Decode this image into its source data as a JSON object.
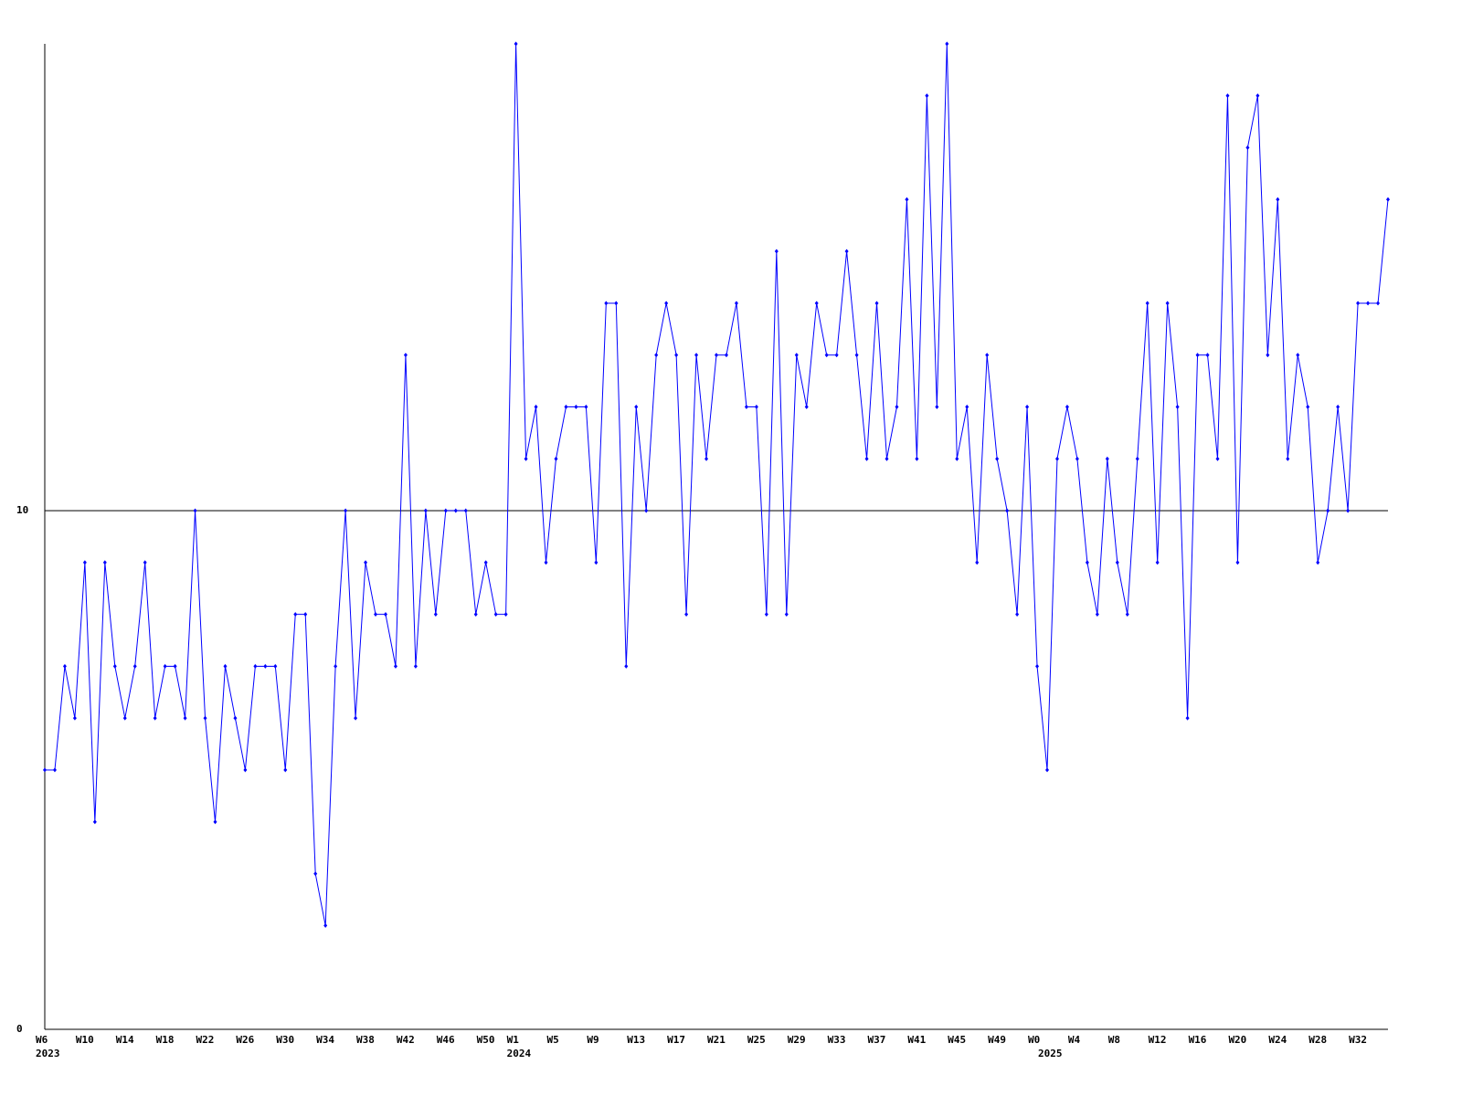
{
  "chart_data": {
    "type": "line",
    "categories": [
      "W6",
      null,
      null,
      null,
      "W10",
      null,
      null,
      null,
      "W14",
      null,
      null,
      null,
      "W18",
      null,
      null,
      null,
      "W22",
      null,
      null,
      null,
      "W26",
      null,
      null,
      null,
      "W30",
      null,
      null,
      null,
      "W34",
      null,
      null,
      null,
      "W38",
      null,
      null,
      null,
      "W42",
      null,
      null,
      null,
      "W46",
      null,
      null,
      null,
      "W50",
      null,
      null,
      "W1",
      null,
      null,
      null,
      "W5",
      null,
      null,
      null,
      "W9",
      null,
      null,
      null,
      "W13",
      null,
      null,
      null,
      "W17",
      null,
      null,
      null,
      "W21",
      null,
      null,
      null,
      "W25",
      null,
      null,
      null,
      "W29",
      null,
      null,
      null,
      "W33",
      null,
      null,
      null,
      "W37",
      null,
      null,
      null,
      "W41",
      null,
      null,
      null,
      "W45",
      null,
      null,
      null,
      "W49",
      null,
      null,
      null,
      "W0",
      null,
      null,
      null,
      "W4",
      null,
      null,
      null,
      "W8",
      null,
      null,
      null,
      "W12",
      null,
      null,
      null,
      "W16",
      null,
      null,
      null,
      "W20",
      null,
      null,
      null,
      "W24",
      null,
      null,
      null,
      "W28",
      null,
      null,
      null,
      "W32",
      null,
      null,
      null
    ],
    "category_years": [
      "2023",
      null,
      null,
      null,
      null,
      null,
      null,
      null,
      null,
      null,
      null,
      null,
      null,
      null,
      null,
      null,
      null,
      null,
      null,
      null,
      null,
      null,
      null,
      null,
      null,
      null,
      null,
      null,
      null,
      null,
      null,
      null,
      null,
      null,
      null,
      null,
      null,
      null,
      null,
      null,
      null,
      null,
      null,
      null,
      null,
      null,
      null,
      "2024",
      null,
      null,
      null,
      null,
      null,
      null,
      null,
      null,
      null,
      null,
      null,
      null,
      null,
      null,
      null,
      null,
      null,
      null,
      null,
      null,
      null,
      null,
      null,
      null,
      null,
      null,
      null,
      null,
      null,
      null,
      null,
      null,
      null,
      null,
      null,
      null,
      null,
      null,
      null,
      null,
      null,
      null,
      null,
      null,
      null,
      null,
      null,
      null,
      null,
      null,
      null,
      null,
      "2025",
      null,
      null,
      null,
      null,
      null,
      null,
      null,
      null,
      null,
      null,
      null,
      null,
      null,
      null,
      null,
      null,
      null,
      null,
      null,
      null,
      null,
      null,
      null,
      null,
      null,
      null,
      null,
      null,
      null,
      null,
      null,
      null,
      null,
      null,
      null
    ],
    "values": [
      5,
      5,
      7,
      6,
      9,
      4,
      9,
      7,
      6,
      7,
      9,
      6,
      7,
      7,
      6,
      10,
      6,
      4,
      7,
      6,
      5,
      7,
      7,
      7,
      5,
      8,
      8,
      3,
      2,
      7,
      10,
      6,
      9,
      8,
      8,
      7,
      13,
      7,
      10,
      8,
      10,
      10,
      10,
      8,
      9,
      8,
      8,
      19,
      11,
      12,
      9,
      11,
      12,
      12,
      12,
      9,
      14,
      14,
      7,
      12,
      10,
      13,
      14,
      13,
      8,
      13,
      11,
      13,
      13,
      14,
      12,
      12,
      8,
      15,
      8,
      13,
      12,
      14,
      13,
      13,
      15,
      13,
      11,
      14,
      11,
      12,
      16,
      11,
      18,
      12,
      19,
      11,
      12,
      9,
      13,
      11,
      10,
      8,
      12,
      7,
      5,
      11,
      12,
      11,
      9,
      8,
      11,
      9,
      8,
      11,
      14,
      9,
      14,
      12,
      6,
      13,
      13,
      11,
      18,
      9,
      17,
      18,
      13,
      16,
      11,
      13,
      12,
      9,
      10,
      12,
      10,
      14,
      14,
      14,
      16
    ],
    "color": "#0000ff",
    "ylim": [
      0,
      19
    ],
    "yticks": [
      0,
      10
    ],
    "grid": true
  }
}
